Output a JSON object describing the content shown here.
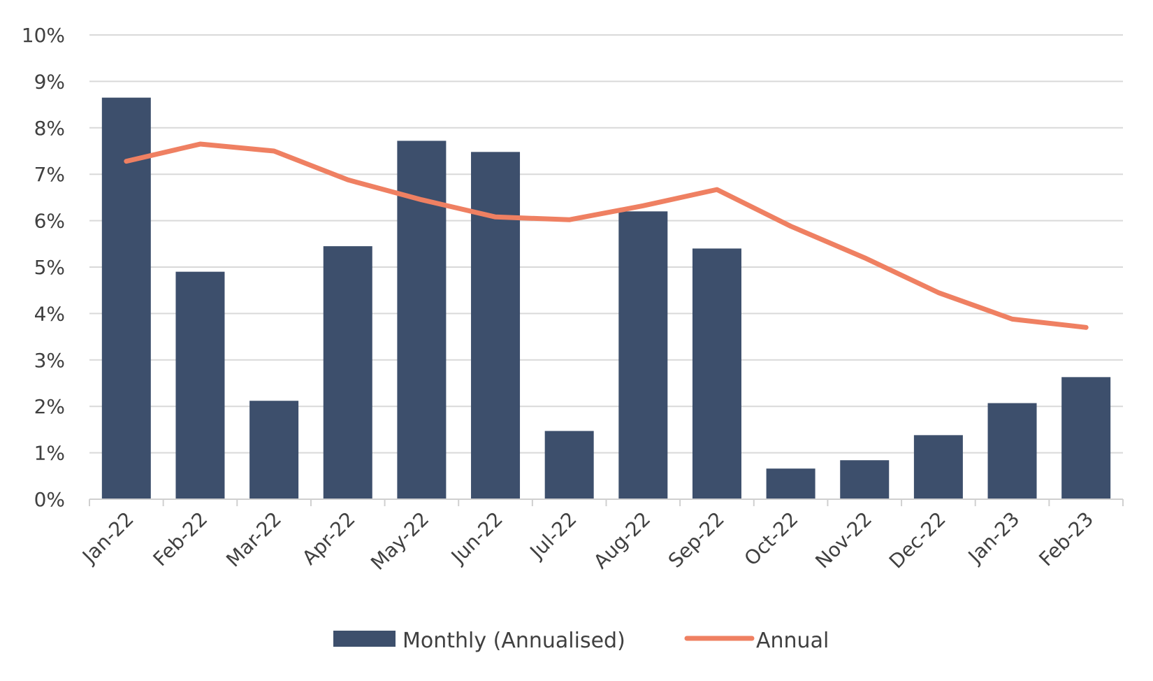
{
  "chart_data": {
    "type": "bar",
    "categories": [
      "Jan-22",
      "Feb-22",
      "Mar-22",
      "Apr-22",
      "May-22",
      "Jun-22",
      "Jul-22",
      "Aug-22",
      "Sep-22",
      "Oct-22",
      "Nov-22",
      "Dec-22",
      "Jan-23",
      "Feb-23"
    ],
    "series": [
      {
        "name": "Monthly (Annualised)",
        "type": "bar",
        "color": "#3d4f6c",
        "values": [
          8.65,
          4.9,
          2.12,
          5.45,
          7.72,
          7.48,
          1.47,
          6.2,
          5.4,
          0.66,
          0.84,
          1.38,
          2.07,
          2.63
        ]
      },
      {
        "name": "Annual",
        "type": "line",
        "color": "#ef8062",
        "values": [
          7.28,
          7.65,
          7.5,
          6.88,
          6.45,
          6.08,
          6.02,
          6.32,
          6.67,
          5.88,
          5.2,
          4.45,
          3.88,
          3.7
        ]
      }
    ],
    "title": "",
    "xlabel": "",
    "ylabel": "",
    "ylim": [
      0,
      10
    ],
    "yticks": [
      "0%",
      "1%",
      "2%",
      "3%",
      "4%",
      "5%",
      "6%",
      "7%",
      "8%",
      "9%",
      "10%"
    ],
    "grid": true,
    "legend_position": "bottom"
  }
}
